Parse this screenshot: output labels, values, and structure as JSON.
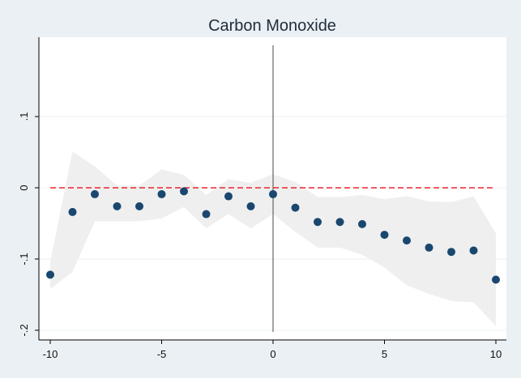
{
  "chart_data": {
    "type": "scatter",
    "title": "Carbon Monoxide",
    "xlabel": "",
    "ylabel": "",
    "xlim": [
      -10.5,
      10.5
    ],
    "ylim": [
      -0.2,
      0.2
    ],
    "x_ticks": [
      {
        "value": -10,
        "label": "-10"
      },
      {
        "value": -5,
        "label": "-5"
      },
      {
        "value": 0,
        "label": "0"
      },
      {
        "value": 5,
        "label": "5"
      },
      {
        "value": 10,
        "label": "10"
      }
    ],
    "y_ticks": [
      {
        "value": 0.1,
        "label": ".1"
      },
      {
        "value": 0,
        "label": "0"
      },
      {
        "value": -0.1,
        "label": "-.1"
      },
      {
        "value": -0.2,
        "label": "-.2"
      }
    ],
    "x": [
      -10,
      -9,
      -8,
      -7,
      -6,
      -5,
      -4,
      -3,
      -2,
      -1,
      0,
      1,
      2,
      3,
      4,
      5,
      6,
      7,
      8,
      9,
      10
    ],
    "y": [
      -0.122,
      -0.034,
      -0.009,
      -0.026,
      -0.026,
      -0.009,
      -0.005,
      -0.037,
      -0.012,
      -0.026,
      -0.009,
      -0.028,
      -0.048,
      -0.048,
      -0.051,
      -0.066,
      -0.074,
      -0.084,
      -0.09,
      -0.088,
      -0.129
    ],
    "ci_lower": [
      -0.142,
      -0.118,
      -0.047,
      -0.047,
      -0.047,
      -0.043,
      -0.027,
      -0.057,
      -0.037,
      -0.057,
      -0.037,
      -0.062,
      -0.084,
      -0.084,
      -0.094,
      -0.112,
      -0.137,
      -0.149,
      -0.159,
      -0.161,
      -0.194
    ],
    "ci_upper": [
      -0.104,
      0.051,
      0.03,
      0.003,
      0.003,
      0.026,
      0.018,
      -0.01,
      0.012,
      0.007,
      0.019,
      0.008,
      -0.013,
      -0.013,
      -0.01,
      -0.016,
      -0.012,
      -0.019,
      -0.02,
      -0.012,
      -0.064
    ],
    "reference_hline": 0,
    "reference_vline": 0,
    "grid": true,
    "colors": {
      "point": "#1a476f",
      "ci_band": "#efefef",
      "hline": "#e8272d",
      "vline": "#666666",
      "plot_bg": "#ffffff",
      "outer_bg": "#eaf0f3",
      "grid": "#eaf0f3",
      "axis": "#000000"
    }
  }
}
